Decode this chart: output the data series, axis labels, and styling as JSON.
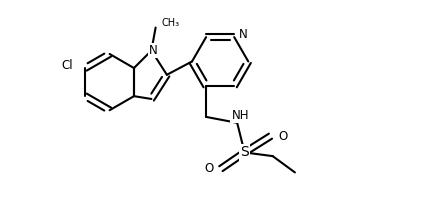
{
  "background_color": "#ffffff",
  "line_color": "#000000",
  "bond_width": 1.5,
  "font_size": 8.5,
  "figsize": [
    4.22,
    2.16
  ],
  "dpi": 100,
  "xlim": [
    -1.5,
    3.2
  ],
  "ylim": [
    -1.5,
    1.4
  ]
}
